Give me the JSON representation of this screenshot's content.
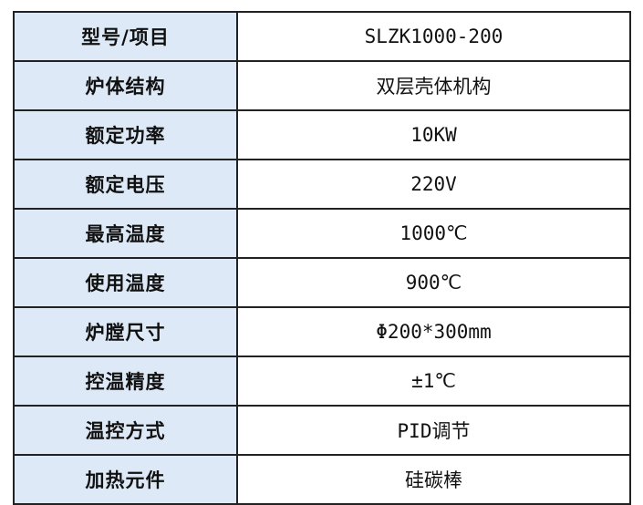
{
  "rows": [
    {
      "label": "型号/项目",
      "value": "SLZK1000-200"
    },
    {
      "label": "炉体结构",
      "value": "双层壳体机构"
    },
    {
      "label": "额定功率",
      "value": "10KW"
    },
    {
      "label": "额定电压",
      "value": "220V"
    },
    {
      "label": "最高温度",
      "value": "1000℃"
    },
    {
      "label": "使用温度",
      "value": "900℃"
    },
    {
      "label": "炉膛尺寸",
      "value": "Φ200*300mm"
    },
    {
      "label": "控温精度",
      "value": "±1℃"
    },
    {
      "label": "温控方式",
      "value": "PID调节"
    },
    {
      "label": "加热元件",
      "value": "硅碳棒"
    }
  ],
  "colors": {
    "label_bg": "#dde9f6",
    "border": "#222222"
  }
}
